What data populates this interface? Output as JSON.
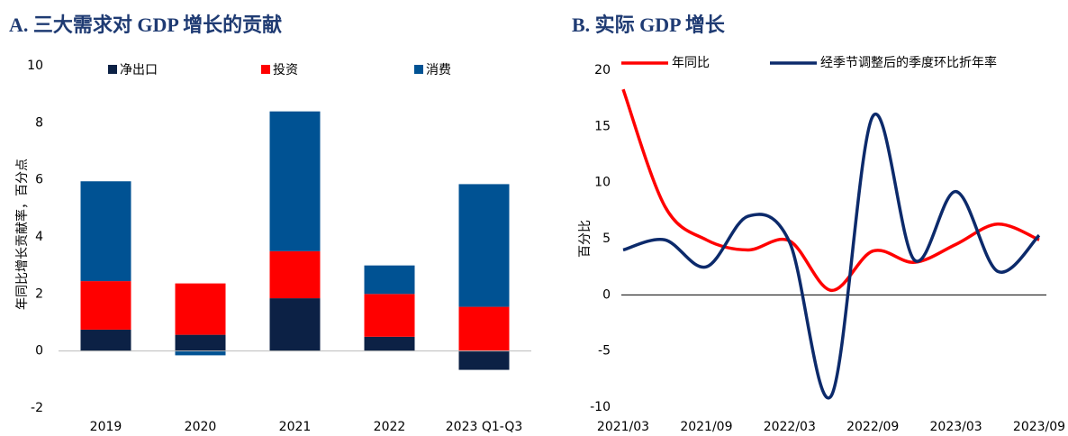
{
  "chart_data": [
    {
      "type": "stacked-bar",
      "title": "A. 三大需求对 GDP 增长的贡献",
      "ylabel": "年同比增长贡献率，百分点",
      "categories": [
        "2019",
        "2020",
        "2021",
        "2022",
        "2023 Q1-Q3"
      ],
      "series": [
        {
          "name": "净出口",
          "color": "#0c2145",
          "values": [
            0.75,
            0.57,
            1.85,
            0.5,
            -0.66
          ]
        },
        {
          "name": "投资",
          "color": "#ff0000",
          "values": [
            1.7,
            1.8,
            1.65,
            1.5,
            1.55
          ]
        },
        {
          "name": "消费",
          "color": "#005293",
          "values": [
            3.5,
            -0.15,
            4.9,
            1.0,
            4.3
          ]
        }
      ],
      "ylim": [
        -2,
        10
      ],
      "yticks": [
        -2,
        0,
        2,
        4,
        6,
        8,
        10
      ]
    },
    {
      "type": "line",
      "title": "B. 实际 GDP 增长",
      "ylabel": "百分比",
      "x": [
        "2021/03",
        null,
        "2021/09",
        null,
        "2022/03",
        null,
        "2022/09",
        null,
        "2023/03",
        null,
        "2023/09"
      ],
      "series": [
        {
          "name": "年同比",
          "color": "#ff0000",
          "values": [
            18.3,
            7.9,
            4.9,
            4.0,
            4.8,
            0.4,
            3.9,
            2.9,
            4.5,
            6.3,
            4.9
          ]
        },
        {
          "name": "经季节调整后的季度环比折年率",
          "color": "#0c2a6b",
          "values": [
            4.0,
            4.9,
            2.5,
            7.0,
            4.7,
            -9.0,
            15.9,
            3.1,
            9.2,
            2.1,
            5.3
          ]
        }
      ],
      "ylim": [
        -10,
        20
      ],
      "yticks": [
        -10,
        -5,
        0,
        5,
        10,
        15,
        20
      ]
    }
  ]
}
